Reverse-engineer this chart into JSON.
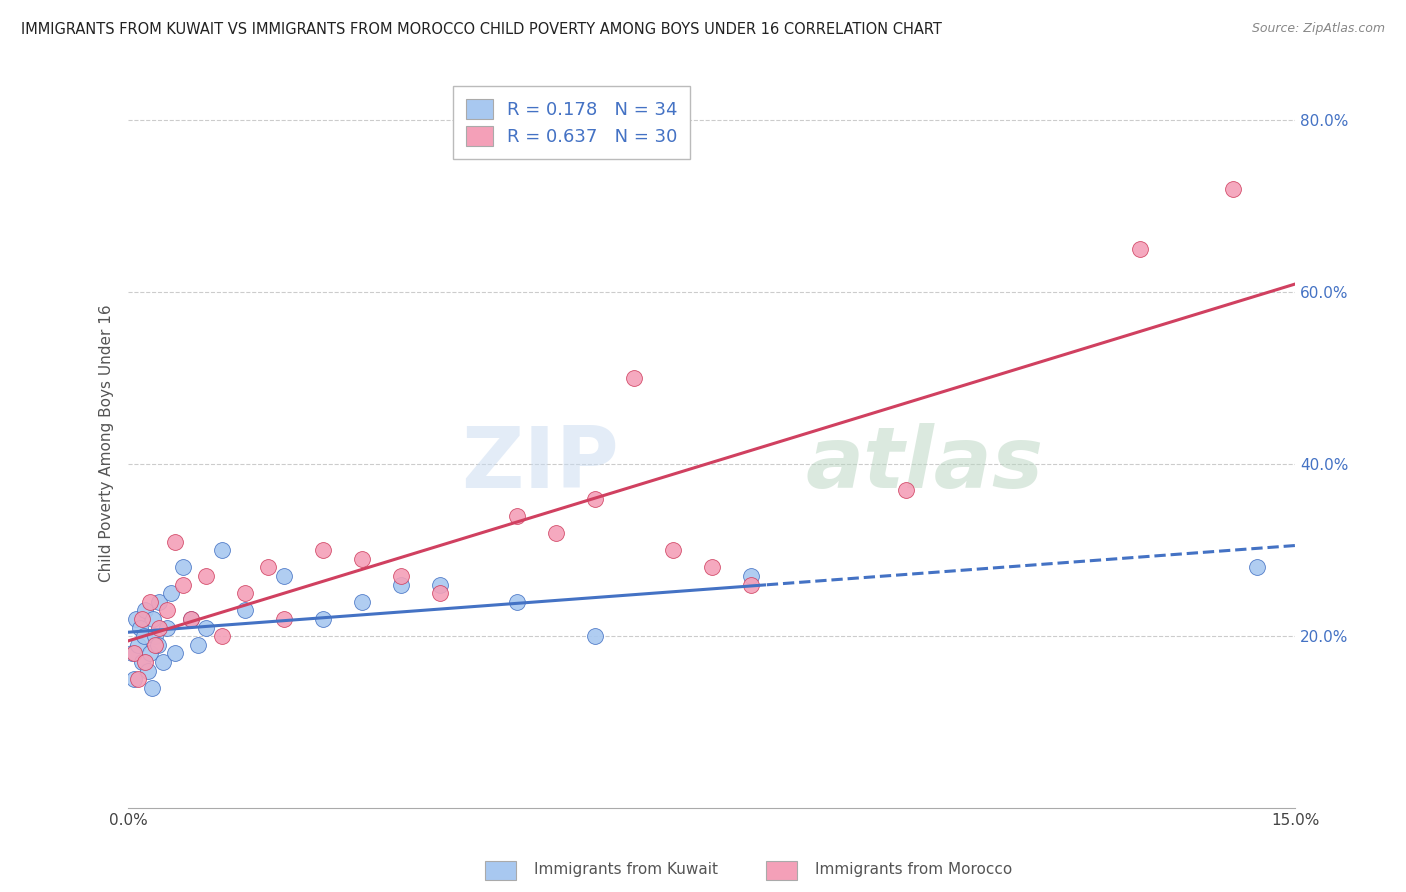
{
  "title": "IMMIGRANTS FROM KUWAIT VS IMMIGRANTS FROM MOROCCO CHILD POVERTY AMONG BOYS UNDER 16 CORRELATION CHART",
  "source": "Source: ZipAtlas.com",
  "ylabel": "Child Poverty Among Boys Under 16",
  "x_min": 0.0,
  "x_max": 15.0,
  "y_min": 0.0,
  "y_max": 85.0,
  "r_kuwait": 0.178,
  "n_kuwait": 34,
  "r_morocco": 0.637,
  "n_morocco": 30,
  "color_kuwait": "#a8c8f0",
  "color_morocco": "#f4a0b8",
  "trend_color_kuwait": "#4472c4",
  "trend_color_morocco": "#d04060",
  "watermark_zip": "ZIP",
  "watermark_atlas": "atlas",
  "legend_label_kuwait": "Immigrants from Kuwait",
  "legend_label_morocco": "Immigrants from Morocco",
  "kuwait_x": [
    0.05,
    0.08,
    0.1,
    0.12,
    0.15,
    0.18,
    0.2,
    0.22,
    0.25,
    0.28,
    0.3,
    0.32,
    0.35,
    0.38,
    0.4,
    0.45,
    0.5,
    0.55,
    0.6,
    0.7,
    0.8,
    0.9,
    1.0,
    1.2,
    1.5,
    2.0,
    2.5,
    3.0,
    3.5,
    4.0,
    5.0,
    6.0,
    8.0,
    14.5
  ],
  "kuwait_y": [
    18,
    15,
    22,
    19,
    21,
    17,
    20,
    23,
    16,
    18,
    14,
    22,
    20,
    19,
    24,
    17,
    21,
    25,
    18,
    28,
    22,
    19,
    21,
    30,
    23,
    27,
    22,
    24,
    26,
    26,
    24,
    20,
    27,
    28
  ],
  "morocco_x": [
    0.08,
    0.12,
    0.18,
    0.22,
    0.28,
    0.35,
    0.4,
    0.5,
    0.6,
    0.7,
    0.8,
    1.0,
    1.2,
    1.5,
    1.8,
    2.0,
    2.5,
    3.0,
    3.5,
    4.0,
    5.0,
    5.5,
    6.0,
    6.5,
    7.0,
    7.5,
    8.0,
    10.0,
    13.0,
    14.2
  ],
  "morocco_y": [
    18,
    15,
    22,
    17,
    24,
    19,
    21,
    23,
    31,
    26,
    22,
    27,
    20,
    25,
    28,
    22,
    30,
    29,
    27,
    25,
    34,
    32,
    36,
    50,
    30,
    28,
    26,
    37,
    65,
    72
  ],
  "figsize": [
    14.06,
    8.92
  ],
  "dpi": 100,
  "dashed_start_x": 8.2
}
